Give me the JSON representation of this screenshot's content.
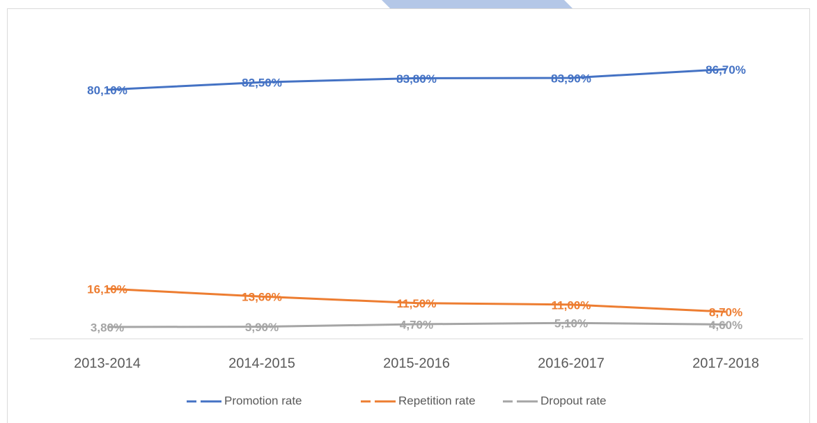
{
  "chart_data": {
    "type": "line",
    "categories": [
      "2013-2014",
      "2014-2015",
      "2015-2016",
      "2016-2017",
      "2017-2018"
    ],
    "series": [
      {
        "name": "Promotion rate",
        "color": "#4472c4",
        "values": [
          80.1,
          82.5,
          83.8,
          83.9,
          86.7
        ],
        "value_labels": [
          "80,10%",
          "82,50%",
          "83,80%",
          "83,90%",
          "86,70%"
        ]
      },
      {
        "name": "Repetition rate",
        "color": "#ed7d31",
        "values": [
          16.1,
          13.6,
          11.5,
          11.0,
          8.7
        ],
        "value_labels": [
          "16,10%",
          "13,60%",
          "11,50%",
          "11,00%",
          "8,70%"
        ]
      },
      {
        "name": "Dropout rate",
        "color": "#a5a5a5",
        "values": [
          3.8,
          3.9,
          4.7,
          5.1,
          4.6
        ],
        "value_labels": [
          "3,80%",
          "3,90%",
          "4,70%",
          "5,10%",
          "4,60%"
        ]
      }
    ],
    "ylim": [
      0,
      100
    ],
    "legend": "bottom"
  }
}
